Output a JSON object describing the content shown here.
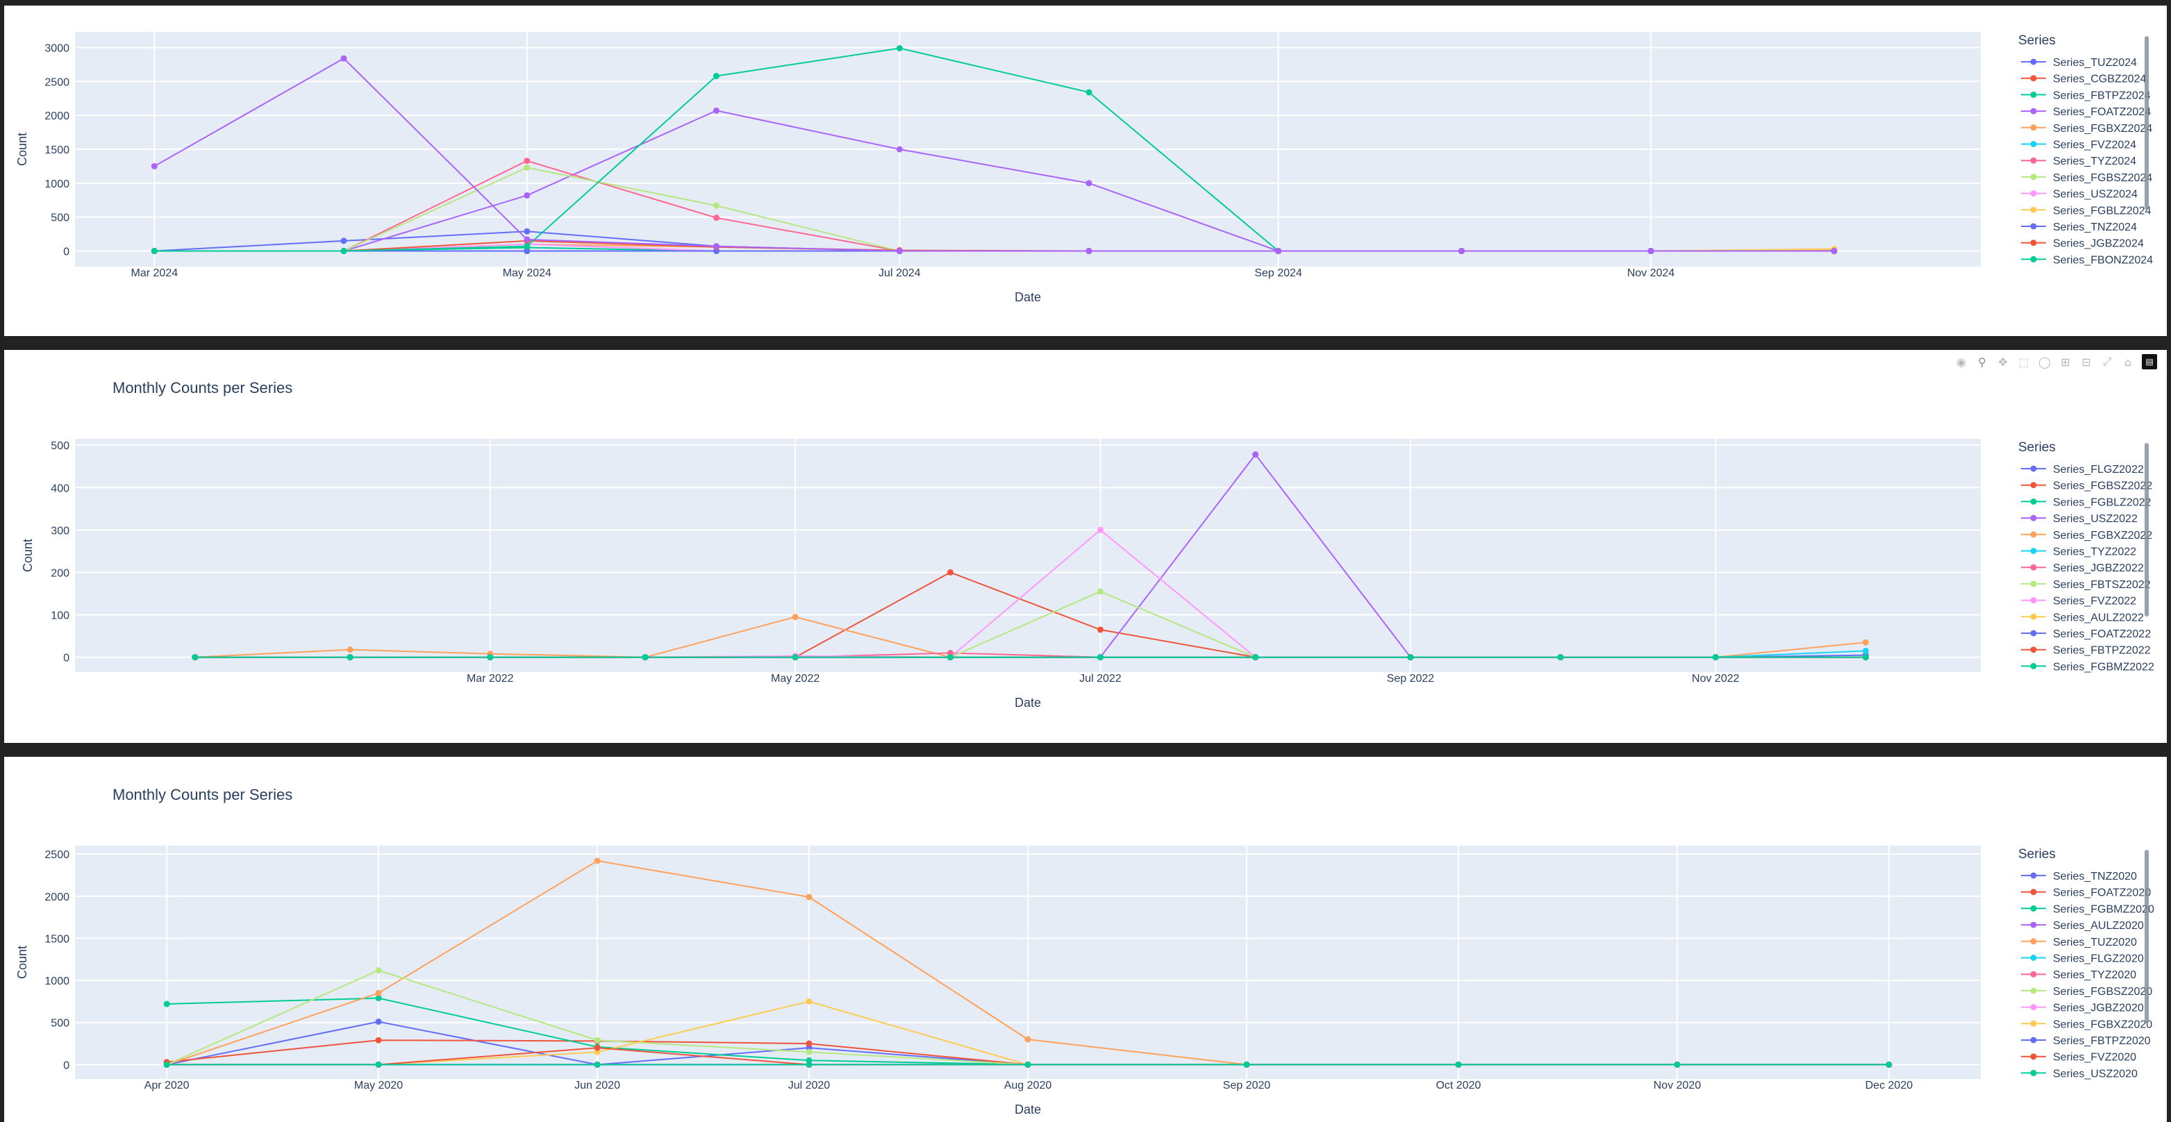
{
  "colors": {
    "plot_bg": "#E5ECF6",
    "grid": "#ffffff",
    "text": "#2a3f5f",
    "palette": [
      "#636EFA",
      "#EF553B",
      "#00CC96",
      "#AB63FA",
      "#FFA15A",
      "#19D3F3",
      "#FF6692",
      "#B6E880",
      "#FF97FF",
      "#FECB52"
    ]
  },
  "modebar_icons": [
    "camera-icon",
    "zoom-icon",
    "pan-icon",
    "box-select-icon",
    "lasso-icon",
    "zoom-in-icon",
    "zoom-out-icon",
    "autoscale-icon",
    "reset-axes-icon",
    "plotly-logo-icon"
  ],
  "chart_data": [
    {
      "type": "line",
      "title": "",
      "xlabel": "Date",
      "ylabel": "Count",
      "legend_title": "Series",
      "legend_position": "right",
      "x": [
        "2024-03-01",
        "2024-04-01",
        "2024-05-01",
        "2024-06-01",
        "2024-07-01",
        "2024-08-01",
        "2024-09-01",
        "2024-10-01",
        "2024-11-01",
        "2024-12-01"
      ],
      "xlim": [
        "2024-02-17",
        "2024-12-25"
      ],
      "x_ticks": [
        [
          "2024-03-01",
          "Mar 2024"
        ],
        [
          "2024-05-01",
          "May 2024"
        ],
        [
          "2024-07-01",
          "Jul 2024"
        ],
        [
          "2024-09-01",
          "Sep 2024"
        ],
        [
          "2024-11-01",
          "Nov 2024"
        ]
      ],
      "ylim": [
        -230,
        3230
      ],
      "y_ticks": [
        0,
        500,
        1000,
        1500,
        2000,
        2500,
        3000
      ],
      "series": [
        {
          "name": "Series_TUZ2024",
          "values": [
            0,
            150,
            290,
            70,
            0,
            0,
            0,
            0,
            0,
            0
          ]
        },
        {
          "name": "Series_CGBZ2024",
          "values": [
            0,
            0,
            0,
            0,
            0,
            0,
            0,
            0,
            0,
            0
          ]
        },
        {
          "name": "Series_FBTPZ2024",
          "values": [
            0,
            0,
            50,
            0,
            0,
            0,
            0,
            0,
            0,
            0
          ]
        },
        {
          "name": "Series_FOATZ2024",
          "values": [
            0,
            0,
            820,
            2070,
            1500,
            1000,
            0,
            0,
            0,
            0
          ]
        },
        {
          "name": "Series_FGBXZ2024",
          "values": [
            0,
            0,
            100,
            60,
            0,
            0,
            0,
            0,
            0,
            20
          ]
        },
        {
          "name": "Series_FVZ2024",
          "values": [
            0,
            0,
            0,
            0,
            0,
            0,
            0,
            0,
            0,
            0
          ]
        },
        {
          "name": "Series_TYZ2024",
          "values": [
            0,
            0,
            1330,
            490,
            0,
            0,
            0,
            0,
            0,
            0
          ]
        },
        {
          "name": "Series_FGBSZ2024",
          "values": [
            0,
            0,
            1230,
            670,
            0,
            0,
            0,
            0,
            0,
            0
          ]
        },
        {
          "name": "Series_USZ2024",
          "values": [
            0,
            0,
            100,
            0,
            0,
            0,
            0,
            0,
            0,
            0
          ]
        },
        {
          "name": "Series_FGBLZ2024",
          "values": [
            0,
            0,
            0,
            0,
            0,
            0,
            0,
            0,
            0,
            30
          ]
        },
        {
          "name": "Series_TNZ2024",
          "values": [
            0,
            0,
            0,
            0,
            0,
            0,
            0,
            0,
            0,
            0
          ]
        },
        {
          "name": "Series_JGBZ2024",
          "values": [
            0,
            0,
            150,
            60,
            10,
            0,
            0,
            0,
            0,
            0
          ]
        },
        {
          "name": "Series_FBONZ2024",
          "values": [
            0,
            0,
            70,
            2580,
            2990,
            2340,
            0,
            0,
            0,
            0
          ]
        },
        {
          "name": "",
          "values": [
            1250,
            2840,
            170,
            70,
            0,
            0,
            0,
            0,
            0,
            0
          ]
        }
      ]
    },
    {
      "type": "line",
      "title": "Monthly Counts per Series",
      "xlabel": "Date",
      "ylabel": "Count",
      "legend_title": "Series",
      "legend_position": "right",
      "x": [
        "2022-01-01",
        "2022-02-01",
        "2022-03-01",
        "2022-04-01",
        "2022-05-01",
        "2022-06-01",
        "2022-07-01",
        "2022-08-01",
        "2022-09-01",
        "2022-10-01",
        "2022-11-01",
        "2022-12-01"
      ],
      "xlim": [
        "2021-12-08",
        "2022-12-24"
      ],
      "x_ticks": [
        [
          "2022-03-01",
          "Mar 2022"
        ],
        [
          "2022-05-01",
          "May 2022"
        ],
        [
          "2022-07-01",
          "Jul 2022"
        ],
        [
          "2022-09-01",
          "Sep 2022"
        ],
        [
          "2022-11-01",
          "Nov 2022"
        ]
      ],
      "ylim": [
        -35,
        515
      ],
      "y_ticks": [
        0,
        100,
        200,
        300,
        400,
        500
      ],
      "series": [
        {
          "name": "Series_FLGZ2022",
          "values": [
            0,
            0,
            0,
            0,
            0,
            0,
            0,
            0,
            0,
            0,
            0,
            5
          ]
        },
        {
          "name": "Series_FGBSZ2022",
          "values": [
            0,
            0,
            0,
            0,
            0,
            200,
            65,
            0,
            0,
            0,
            0,
            0
          ]
        },
        {
          "name": "Series_FGBLZ2022",
          "values": [
            0,
            0,
            0,
            0,
            0,
            0,
            0,
            0,
            0,
            0,
            0,
            0
          ]
        },
        {
          "name": "Series_USZ2022",
          "values": [
            0,
            0,
            0,
            0,
            0,
            0,
            0,
            478,
            0,
            0,
            0,
            0
          ]
        },
        {
          "name": "Series_FGBXZ2022",
          "values": [
            0,
            18,
            8,
            0,
            95,
            0,
            0,
            0,
            0,
            0,
            0,
            35
          ]
        },
        {
          "name": "Series_TYZ2022",
          "values": [
            0,
            0,
            0,
            0,
            0,
            0,
            0,
            0,
            0,
            0,
            0,
            15
          ]
        },
        {
          "name": "Series_JGBZ2022",
          "values": [
            0,
            0,
            0,
            0,
            0,
            10,
            0,
            0,
            0,
            0,
            0,
            0
          ]
        },
        {
          "name": "Series_FBTSZ2022",
          "values": [
            0,
            0,
            0,
            0,
            0,
            0,
            155,
            0,
            0,
            0,
            0,
            0
          ]
        },
        {
          "name": "Series_FVZ2022",
          "values": [
            0,
            0,
            0,
            0,
            3,
            0,
            300,
            0,
            0,
            0,
            0,
            0
          ]
        },
        {
          "name": "Series_AULZ2022",
          "values": [
            0,
            0,
            0,
            0,
            0,
            0,
            0,
            0,
            0,
            0,
            0,
            0
          ]
        },
        {
          "name": "Series_FOATZ2022",
          "values": [
            0,
            0,
            0,
            0,
            0,
            0,
            0,
            0,
            0,
            0,
            0,
            0
          ]
        },
        {
          "name": "Series_FBTPZ2022",
          "values": [
            0,
            0,
            0,
            0,
            0,
            0,
            0,
            0,
            0,
            0,
            0,
            0
          ]
        },
        {
          "name": "Series_FGBMZ2022",
          "values": [
            0,
            0,
            0,
            0,
            0,
            0,
            0,
            0,
            0,
            0,
            0,
            0
          ]
        }
      ]
    },
    {
      "type": "line",
      "title": "Monthly Counts per Series",
      "xlabel": "Date",
      "ylabel": "Count",
      "legend_title": "Series",
      "legend_position": "right",
      "x": [
        "2020-04-01",
        "2020-05-01",
        "2020-06-01",
        "2020-07-01",
        "2020-08-01",
        "2020-09-01",
        "2020-10-01",
        "2020-11-01",
        "2020-12-01"
      ],
      "xlim": [
        "2020-03-19",
        "2020-12-14"
      ],
      "x_ticks": [
        [
          "2020-04-01",
          "Apr 2020"
        ],
        [
          "2020-05-01",
          "May 2020"
        ],
        [
          "2020-06-01",
          "Jun 2020"
        ],
        [
          "2020-07-01",
          "Jul 2020"
        ],
        [
          "2020-08-01",
          "Aug 2020"
        ],
        [
          "2020-09-01",
          "Sep 2020"
        ],
        [
          "2020-10-01",
          "Oct 2020"
        ],
        [
          "2020-11-01",
          "Nov 2020"
        ],
        [
          "2020-12-01",
          "Dec 2020"
        ]
      ],
      "ylim": [
        -170,
        2600
      ],
      "y_ticks": [
        0,
        500,
        1000,
        1500,
        2000,
        2500
      ],
      "series": [
        {
          "name": "Series_TNZ2020",
          "values": [
            0,
            510,
            0,
            200,
            0,
            0,
            0,
            0,
            0
          ]
        },
        {
          "name": "Series_FOATZ2020",
          "values": [
            30,
            290,
            280,
            250,
            0,
            0,
            0,
            0,
            0
          ]
        },
        {
          "name": "Series_FGBMZ2020",
          "values": [
            720,
            790,
            210,
            50,
            0,
            0,
            0,
            0,
            0
          ]
        },
        {
          "name": "Series_AULZ2020",
          "values": [
            0,
            0,
            0,
            0,
            0,
            0,
            0,
            0,
            0
          ]
        },
        {
          "name": "Series_TUZ2020",
          "values": [
            0,
            850,
            2420,
            1990,
            300,
            0,
            0,
            0,
            0
          ]
        },
        {
          "name": "Series_FLGZ2020",
          "values": [
            0,
            0,
            0,
            0,
            0,
            0,
            0,
            0,
            0
          ]
        },
        {
          "name": "Series_TYZ2020",
          "values": [
            0,
            0,
            0,
            0,
            0,
            0,
            0,
            0,
            0
          ]
        },
        {
          "name": "Series_FGBSZ2020",
          "values": [
            0,
            1120,
            290,
            150,
            0,
            0,
            0,
            0,
            0
          ]
        },
        {
          "name": "Series_JGBZ2020",
          "values": [
            0,
            0,
            0,
            0,
            0,
            0,
            0,
            0,
            0
          ]
        },
        {
          "name": "Series_FGBXZ2020",
          "values": [
            0,
            0,
            150,
            750,
            0,
            0,
            0,
            0,
            0
          ]
        },
        {
          "name": "Series_FBTPZ2020",
          "values": [
            0,
            0,
            0,
            0,
            0,
            0,
            0,
            0,
            0
          ]
        },
        {
          "name": "Series_FVZ2020",
          "values": [
            0,
            0,
            200,
            0,
            0,
            0,
            0,
            0,
            0
          ]
        },
        {
          "name": "Series_USZ2020",
          "values": [
            0,
            0,
            0,
            0,
            0,
            0,
            0,
            0,
            0
          ]
        }
      ]
    }
  ]
}
